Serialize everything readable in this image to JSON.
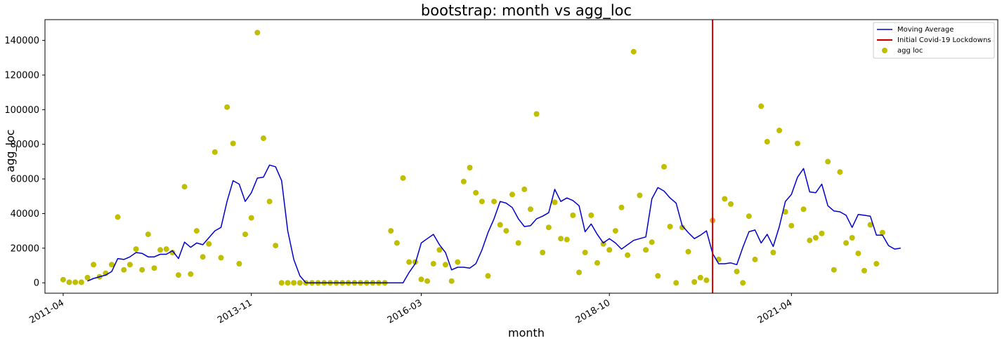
{
  "chart_data": {
    "type": "line",
    "title": "bootstrap: month vs agg_loc",
    "xlabel": "month",
    "ylabel": "agg_loc",
    "x_start": "2011-04",
    "x_end": "2023-04",
    "xlim": [
      "2011-01",
      "2024-02"
    ],
    "ylim": [
      -6000,
      152000
    ],
    "x_ticks": [
      "2011-04",
      "2013-11",
      "2016-03",
      "2018-10",
      "2021-04"
    ],
    "y_ticks": [
      0,
      20000,
      40000,
      60000,
      80000,
      100000,
      120000,
      140000
    ],
    "grid": false,
    "legend_position": "top-right",
    "legend": [
      "Moving Average",
      "Initial Covid-19 Lockdowns",
      "agg loc"
    ],
    "colors": {
      "moving_average": "#0000cc",
      "lockdown": "#cc0000",
      "points": "#bfbf00",
      "highlight_point": "#f0a020"
    },
    "lockdown_date": "2020-03",
    "highlight_point_month": "2020-03",
    "series": [
      {
        "name": "agg loc",
        "type": "scatter",
        "values": [
          1800,
          300,
          300,
          300,
          3000,
          10500,
          3500,
          5500,
          10500,
          38000,
          7500,
          10500,
          19500,
          7500,
          28000,
          8500,
          19000,
          19500,
          17500,
          4500,
          55500,
          5000,
          30000,
          15000,
          22500,
          75500,
          14500,
          101500,
          80500,
          11000,
          28000,
          37500,
          144500,
          83500,
          47000,
          21500,
          0,
          0,
          0,
          0,
          0,
          0,
          0,
          0,
          0,
          0,
          0,
          0,
          0,
          0,
          0,
          0,
          0,
          0,
          30000,
          23000,
          60500,
          12000,
          12000,
          2000,
          1000,
          11000,
          19000,
          10500,
          1000,
          12000,
          58500,
          66500,
          52000,
          47000,
          4000,
          47000,
          33500,
          30000,
          51000,
          23000,
          54000,
          42500,
          97500,
          17500,
          32000,
          46500,
          25500,
          25000,
          39000,
          6000,
          17500,
          39000,
          11500,
          22500,
          19000,
          30000,
          43500,
          16000,
          133500,
          50500,
          19000,
          23500,
          4000,
          67000,
          32500,
          0,
          32000,
          18000,
          500,
          3000,
          1500,
          36000,
          13500,
          48500,
          45500,
          6500,
          0,
          38500,
          13500,
          102000,
          81500,
          17500,
          88000,
          41000,
          33000,
          80500,
          42500,
          24500,
          26000,
          28500,
          70000,
          7500,
          64000,
          23000,
          26000,
          17000,
          7000,
          33500,
          11000,
          29000
        ]
      },
      {
        "name": "Moving Average",
        "type": "line",
        "start_index": 4,
        "values": [
          1000,
          2500,
          3500,
          4500,
          6500,
          14000,
          13500,
          15000,
          17500,
          17000,
          15000,
          15000,
          16500,
          16500,
          18500,
          14000,
          23500,
          20500,
          23000,
          22000,
          26000,
          30000,
          32000,
          47000,
          59000,
          57000,
          47000,
          52000,
          60500,
          61000,
          68000,
          67000,
          59000,
          30000,
          13500,
          4000,
          0,
          0,
          0,
          0,
          0,
          0,
          0,
          0,
          0,
          0,
          0,
          0,
          0,
          0,
          0,
          0,
          0,
          6000,
          11000,
          23000,
          25500,
          28000,
          22000,
          17500,
          7500,
          9000,
          9000,
          8500,
          11000,
          19000,
          29000,
          37000,
          47000,
          46000,
          43500,
          37000,
          32500,
          33000,
          37000,
          38500,
          40500,
          54000,
          47000,
          49000,
          47500,
          44500,
          29500,
          34000,
          28000,
          23000,
          25500,
          23000,
          19500,
          22000,
          24500,
          25500,
          26500,
          48500,
          55000,
          53000,
          49000,
          46000,
          33000,
          29000,
          25500,
          27500,
          30000,
          17000,
          11000,
          11000,
          11500,
          10500,
          20500,
          29500,
          30500,
          23000,
          28000,
          21000,
          32500,
          47000,
          51000,
          61000,
          66000,
          52500,
          52000,
          57000,
          44500,
          41500,
          41000,
          39000,
          32000,
          39500,
          39000,
          38500,
          27500,
          27500,
          21500,
          19500,
          20000
        ]
      }
    ]
  }
}
